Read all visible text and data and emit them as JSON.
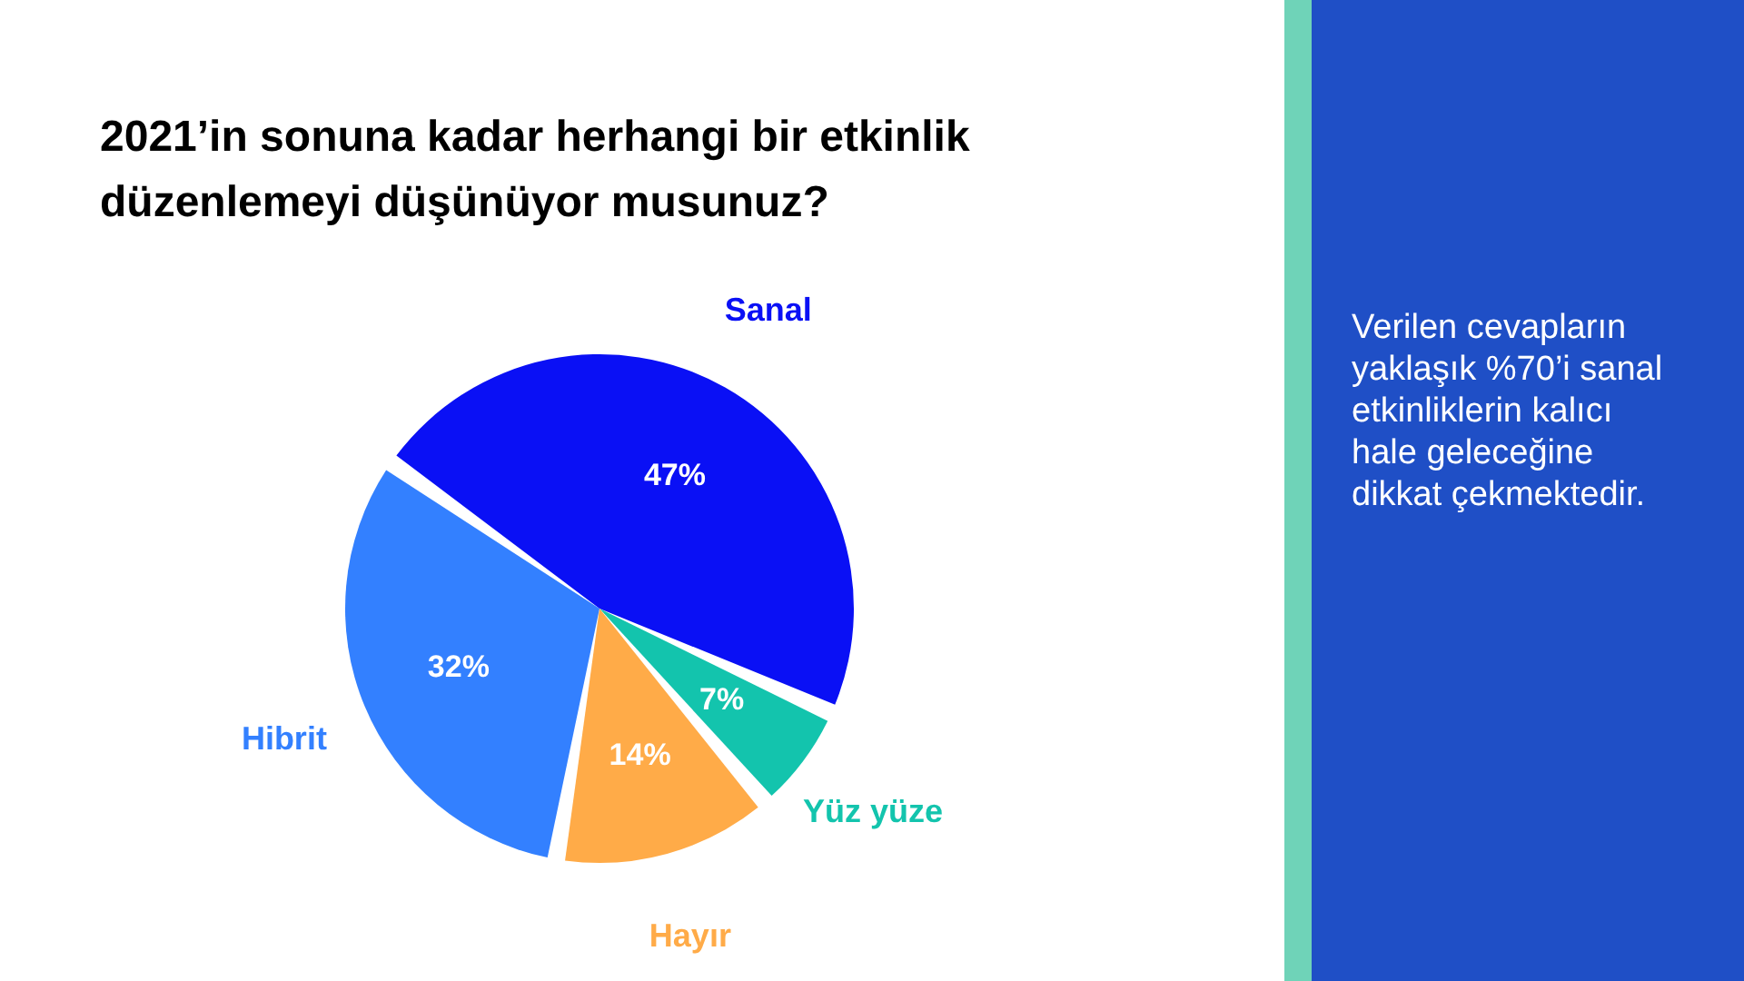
{
  "chart_data": {
    "type": "pie",
    "title": "2021’in sonuna kadar herhangi bir etkinlik düzenlemeyi düşünüyor musunuz?",
    "categories": [
      "Sanal",
      "Yüz yüze",
      "Hayır",
      "Hibrit"
    ],
    "values": [
      47,
      7,
      14,
      32
    ],
    "value_labels": [
      "47%",
      "7%",
      "14%",
      "32%"
    ],
    "colors": [
      "#0a10f5",
      "#13c4ad",
      "#ffab48",
      "#3380ff"
    ],
    "annotations": [
      "Verilen cevapların yaklaşık %70’i sanal etkinliklerin kalıcı hale geleceğine dikkat çekmektedir."
    ]
  }
}
